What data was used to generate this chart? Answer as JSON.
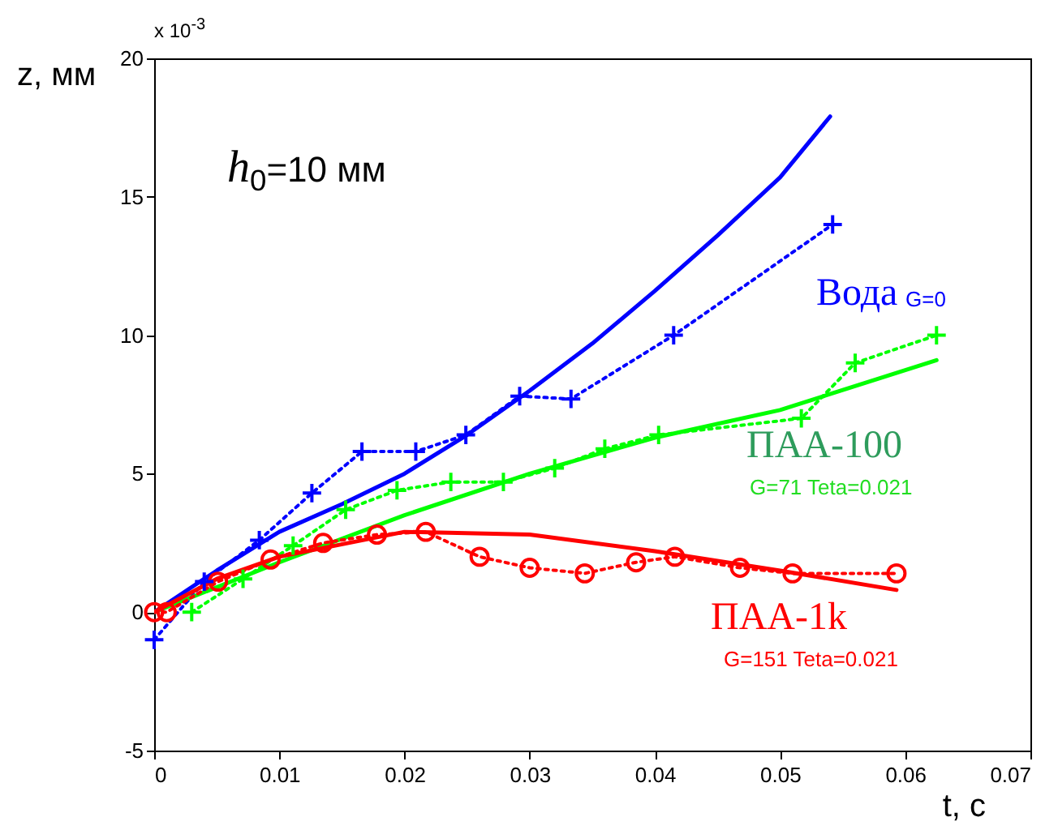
{
  "chart_data": {
    "type": "line",
    "xlabel": "t, с",
    "ylabel": "z, мм",
    "xlim": [
      0,
      0.07
    ],
    "xticks": [
      0,
      0.01,
      0.02,
      0.03,
      0.04,
      0.05,
      0.06,
      0.07
    ],
    "ylim": [
      -5,
      20
    ],
    "yticks": [
      -5,
      0,
      5,
      10,
      15,
      20
    ],
    "grid": false,
    "annotations": [
      "x 10$^{-3}$",
      "h$_{0}$=10 мм",
      "G=0",
      "G=71 Teta=0.021",
      "G=151 Teta=0.021"
    ],
    "series": [
      {
        "name": "Вода",
        "color": "#0000ff",
        "line_style": "solid",
        "marker": "none",
        "x": [
          0,
          0.005,
          0.01,
          0.015,
          0.02,
          0.025,
          0.03,
          0.035,
          0.04,
          0.045,
          0.05,
          0.054
        ],
        "values": [
          0,
          1.5,
          2.9,
          3.9,
          5.0,
          6.4,
          8.0,
          9.7,
          11.6,
          13.6,
          15.7,
          17.9
        ]
      },
      {
        "color": "#0000ff",
        "line_style": "dotted",
        "marker": "cross",
        "x": [
          0,
          0.004,
          0.0084,
          0.0126,
          0.0166,
          0.0209,
          0.0249,
          0.0292,
          0.0333,
          0.0415,
          0.0542
        ],
        "values": [
          -1,
          1.1,
          2.6,
          4.3,
          5.8,
          5.8,
          6.4,
          7.8,
          7.7,
          10.0,
          14.0
        ]
      },
      {
        "name": "ПАА-100",
        "color": "#00ff00",
        "line_style": "solid",
        "marker": "none",
        "x": [
          0,
          0.01,
          0.02,
          0.03,
          0.04,
          0.05,
          0.0625
        ],
        "values": [
          0,
          1.8,
          3.5,
          5.0,
          6.3,
          7.3,
          9.1
        ]
      },
      {
        "color": "#00ff00",
        "line_style": "dotted",
        "marker": "cross",
        "x": [
          0.003,
          0.0071,
          0.0111,
          0.0153,
          0.0194,
          0.0237,
          0.0279,
          0.032,
          0.036,
          0.0403,
          0.0517,
          0.056,
          0.0625
        ],
        "values": [
          0,
          1.2,
          2.4,
          3.7,
          4.4,
          4.7,
          4.7,
          5.2,
          5.9,
          6.4,
          7.0,
          9.0,
          10.0
        ]
      },
      {
        "name": "ПАА-1k",
        "color": "#ff0000",
        "line_style": "solid",
        "marker": "none",
        "x": [
          0,
          0.005,
          0.01,
          0.02,
          0.03,
          0.04,
          0.05,
          0.0593
        ],
        "values": [
          0,
          1.2,
          2.0,
          2.9,
          2.8,
          2.2,
          1.5,
          0.8
        ]
      },
      {
        "color": "#ff0000",
        "line_style": "dotted",
        "marker": "circle",
        "x": [
          0,
          0.001,
          0.0051,
          0.0093,
          0.0135,
          0.0178,
          0.0217,
          0.026,
          0.03,
          0.0344,
          0.0385,
          0.0416,
          0.0468,
          0.051,
          0.0593
        ],
        "values": [
          0,
          0,
          1.1,
          1.9,
          2.5,
          2.8,
          2.9,
          2.0,
          1.6,
          1.4,
          1.8,
          2.0,
          1.6,
          1.4,
          1.4
        ]
      }
    ]
  }
}
